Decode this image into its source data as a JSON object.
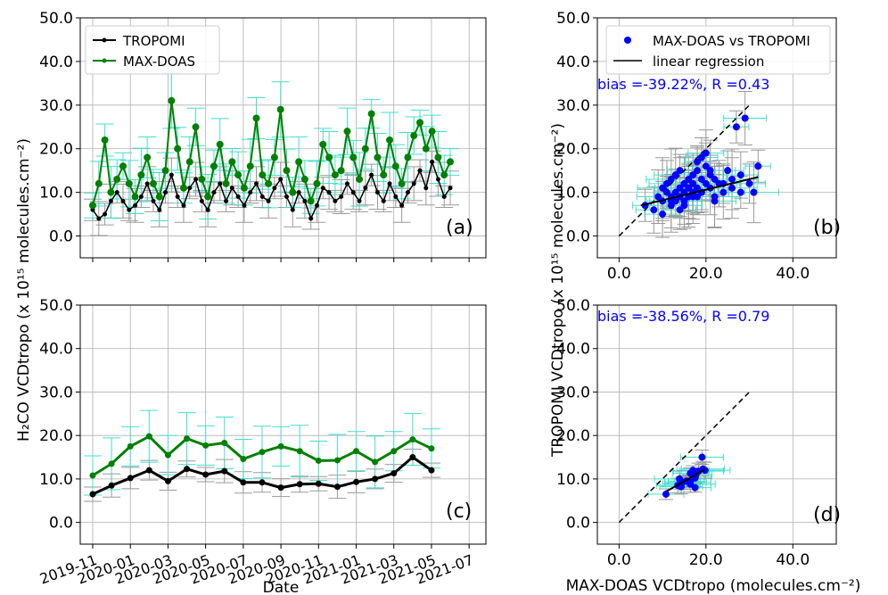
{
  "figure": {
    "ylabel_left": "H₂CO VCDtropo (x 10¹⁵ molecules.cm⁻²)",
    "ylabel_right": "TROPOMI VCDtropo (x 10¹⁵ molecules.cm⁻²)",
    "xlabel_left": "Date",
    "xlabel_right": "MAX-DOAS VCDtropo (molecules.cm⁻²)"
  },
  "chart_data": [
    {
      "id": "a",
      "type": "line",
      "panel_label": "(a)",
      "ylim": [
        -5,
        50
      ],
      "yticks": [
        "0.0",
        "10.0",
        "20.0",
        "30.0",
        "40.0",
        "50.0"
      ],
      "grid": true,
      "legend": "top-left",
      "series": [
        {
          "name": "TROPOMI",
          "color": "#000000",
          "values": [
            6,
            4,
            5,
            8,
            10,
            8,
            6,
            7,
            9,
            12,
            8,
            6,
            10,
            14,
            9,
            7,
            11,
            13,
            8,
            6,
            10,
            12,
            8,
            11,
            9,
            7,
            10,
            12,
            9,
            8,
            11,
            13,
            9,
            6,
            10,
            8,
            4,
            7,
            11,
            10,
            8,
            9,
            12,
            10,
            8,
            11,
            14,
            10,
            8,
            12,
            9,
            7,
            10,
            12,
            15,
            11,
            17,
            13,
            9,
            11
          ]
        },
        {
          "name": "MAX-DOAS",
          "color": "#008000",
          "values": [
            7,
            12,
            22,
            10,
            13,
            16,
            12,
            9,
            14,
            18,
            12,
            9,
            15,
            31,
            20,
            11,
            17,
            25,
            13,
            9,
            16,
            21,
            12,
            17,
            14,
            11,
            16,
            27,
            14,
            12,
            18,
            29,
            15,
            10,
            17,
            13,
            8,
            12,
            21,
            18,
            14,
            15,
            24,
            18,
            13,
            20,
            28,
            18,
            14,
            22,
            16,
            12,
            18,
            23,
            26,
            20,
            24,
            18,
            14,
            17
          ]
        }
      ]
    },
    {
      "id": "b",
      "type": "scatter",
      "panel_label": "(b)",
      "xlim": [
        -5,
        50
      ],
      "ylim": [
        -5,
        50
      ],
      "xticks": [
        "0.0",
        "20.0",
        "40.0"
      ],
      "yticks": [
        "0.0",
        "10.0",
        "20.0",
        "30.0",
        "40.0",
        "50.0"
      ],
      "grid": true,
      "legend": "top-right",
      "annotation": "bias =-39.22%, R =0.43",
      "series": [
        {
          "name": "MAX-DOAS vs TROPOMI",
          "color": "#0000ff",
          "x": [
            6,
            8,
            9,
            10,
            10,
            11,
            11,
            12,
            12,
            12,
            13,
            13,
            13,
            14,
            14,
            14,
            15,
            15,
            15,
            16,
            16,
            16,
            17,
            17,
            17,
            18,
            18,
            18,
            19,
            19,
            20,
            20,
            21,
            21,
            22,
            22,
            23,
            24,
            25,
            26,
            27,
            28,
            29,
            30,
            31,
            32,
            10,
            12,
            14,
            16,
            18,
            20,
            22,
            24,
            26,
            28,
            15,
            17,
            19,
            21
          ],
          "y": [
            7,
            6,
            9,
            8,
            11,
            10,
            12,
            7,
            9,
            13,
            8,
            10,
            14,
            9,
            11,
            15,
            8,
            12,
            10,
            9,
            13,
            11,
            10,
            14,
            12,
            9,
            15,
            11,
            10,
            13,
            12,
            16,
            11,
            14,
            9,
            13,
            12,
            10,
            15,
            11,
            25,
            14,
            27,
            12,
            10,
            16,
            5,
            8,
            6,
            11,
            17,
            19,
            8,
            12,
            13,
            10,
            7,
            9,
            18,
            15
          ]
        }
      ],
      "regression": {
        "name": "linear regression",
        "x": [
          5,
          32
        ],
        "y": [
          7,
          13.5
        ]
      },
      "identity_line": {
        "x": [
          0,
          30
        ],
        "y": [
          0,
          30
        ]
      }
    },
    {
      "id": "c",
      "type": "line",
      "panel_label": "(c)",
      "x": [
        "2019-11",
        "2019-12",
        "2020-01",
        "2020-02",
        "2020-03",
        "2020-04",
        "2020-05",
        "2020-06",
        "2020-07",
        "2020-08",
        "2020-09",
        "2020-10",
        "2020-11",
        "2020-12",
        "2021-01",
        "2021-02",
        "2021-03",
        "2021-04",
        "2021-05"
      ],
      "xticks": [
        "2019-11",
        "2020-01",
        "2020-03",
        "2020-05",
        "2020-07",
        "2020-09",
        "2020-11",
        "2021-01",
        "2021-03",
        "2021-05",
        "2021-07"
      ],
      "ylim": [
        -5,
        50
      ],
      "yticks": [
        "0.0",
        "10.0",
        "20.0",
        "30.0",
        "40.0",
        "50.0"
      ],
      "grid": true,
      "series": [
        {
          "name": "TROPOMI",
          "color": "#000000",
          "values": [
            6.5,
            8.5,
            10.2,
            12,
            9.5,
            12.3,
            11,
            11.8,
            9.2,
            9.2,
            8,
            8.8,
            8.9,
            8.2,
            9.3,
            10,
            11.3,
            15,
            12
          ]
        },
        {
          "name": "MAX-DOAS",
          "color": "#008000",
          "values": [
            10.8,
            13.5,
            17.5,
            19.8,
            15.5,
            19.3,
            17.7,
            18.3,
            14.6,
            16.2,
            17.5,
            16.4,
            14.2,
            14.3,
            16.4,
            13.9,
            16.4,
            19.1,
            17
          ]
        }
      ]
    },
    {
      "id": "d",
      "type": "scatter",
      "panel_label": "(d)",
      "xlim": [
        -5,
        50
      ],
      "ylim": [
        -5,
        50
      ],
      "xticks": [
        "0.0",
        "20.0",
        "40.0"
      ],
      "yticks": [
        "0.0",
        "10.0",
        "20.0",
        "30.0",
        "40.0",
        "50.0"
      ],
      "grid": true,
      "annotation": "bias =-38.56%, R =0.79",
      "series": [
        {
          "name": "MAX-DOAS vs TROPOMI",
          "color": "#0000ff",
          "x": [
            10.8,
            13.5,
            17.5,
            19.8,
            15.5,
            19.3,
            17.7,
            18.3,
            14.6,
            16.2,
            17.5,
            16.4,
            14.2,
            14.3,
            16.4,
            13.9,
            16.4,
            19.1,
            17
          ],
          "y": [
            6.5,
            8.5,
            10.2,
            12,
            9.5,
            12.3,
            11,
            11.8,
            9.2,
            9.2,
            8,
            8.8,
            8.9,
            8.2,
            9.3,
            10,
            11.3,
            15,
            12
          ]
        }
      ],
      "regression": {
        "x": [
          11,
          19.8
        ],
        "y": [
          7.2,
          12.2
        ]
      },
      "identity_line": {
        "x": [
          0,
          30
        ],
        "y": [
          0,
          30
        ]
      }
    }
  ]
}
